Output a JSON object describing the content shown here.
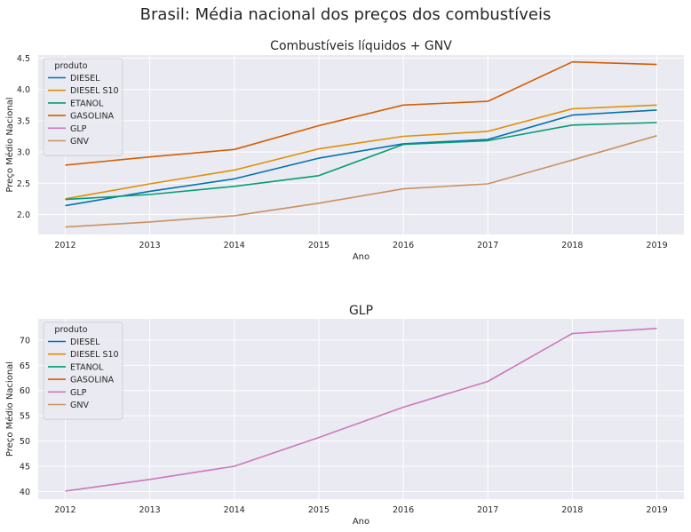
{
  "figure": {
    "suptitle": "Brasil: Média nacional dos preços dos combustíveis"
  },
  "chart_data": [
    {
      "type": "line",
      "title": "Combustíveis líquidos + GNV",
      "xlabel": "Ano",
      "ylabel": "Preço Médio Nacional",
      "x": [
        2012,
        2013,
        2014,
        2015,
        2016,
        2017,
        2018,
        2019
      ],
      "xlim": [
        2011.68,
        2019.32
      ],
      "ylim": [
        1.68,
        4.55
      ],
      "yticks": [
        2.0,
        2.5,
        3.0,
        3.5,
        4.0,
        4.5
      ],
      "yticklabels": [
        "2.0",
        "2.5",
        "3.0",
        "3.5",
        "4.0",
        "4.5"
      ],
      "xticklabels": [
        "2012",
        "2013",
        "2014",
        "2015",
        "2016",
        "2017",
        "2018",
        "2019"
      ],
      "grid": true,
      "legend_position": "upper-left",
      "legend_title": "produto",
      "series": [
        {
          "name": "DIESEL",
          "color": "#0173b2",
          "values": [
            2.14,
            2.37,
            2.57,
            2.9,
            3.13,
            3.2,
            3.59,
            3.67
          ]
        },
        {
          "name": "DIESEL S10",
          "color": "#de8f05",
          "values": [
            2.25,
            2.49,
            2.71,
            3.05,
            3.25,
            3.33,
            3.69,
            3.75
          ]
        },
        {
          "name": "ETANOL",
          "color": "#029e73",
          "values": [
            2.24,
            2.32,
            2.45,
            2.62,
            3.12,
            3.18,
            3.43,
            3.47
          ]
        },
        {
          "name": "GASOLINA",
          "color": "#d55e00",
          "values": [
            2.79,
            2.92,
            3.04,
            3.42,
            3.75,
            3.81,
            4.44,
            4.4
          ]
        },
        {
          "name": "GLP",
          "color": "#cc78bc",
          "values": [
            null,
            null,
            null,
            null,
            null,
            null,
            null,
            null
          ]
        },
        {
          "name": "GNV",
          "color": "#ca9161",
          "values": [
            1.8,
            1.88,
            1.98,
            2.18,
            2.41,
            2.49,
            2.87,
            3.26
          ]
        }
      ]
    },
    {
      "type": "line",
      "title": "GLP",
      "xlabel": "Ano",
      "ylabel": "Preço Médio Nacional",
      "x": [
        2012,
        2013,
        2014,
        2015,
        2016,
        2017,
        2018,
        2019
      ],
      "xlim": [
        2011.68,
        2019.32
      ],
      "ylim": [
        38.5,
        74.2
      ],
      "yticks": [
        40,
        45,
        50,
        55,
        60,
        65,
        70
      ],
      "yticklabels": [
        "40",
        "45",
        "50",
        "55",
        "60",
        "65",
        "70"
      ],
      "xticklabels": [
        "2012",
        "2013",
        "2014",
        "2015",
        "2016",
        "2017",
        "2018",
        "2019"
      ],
      "grid": true,
      "legend_position": "upper-left",
      "legend_title": "produto",
      "series": [
        {
          "name": "DIESEL",
          "color": "#0173b2",
          "values": [
            null,
            null,
            null,
            null,
            null,
            null,
            null,
            null
          ]
        },
        {
          "name": "DIESEL S10",
          "color": "#de8f05",
          "values": [
            null,
            null,
            null,
            null,
            null,
            null,
            null,
            null
          ]
        },
        {
          "name": "ETANOL",
          "color": "#029e73",
          "values": [
            null,
            null,
            null,
            null,
            null,
            null,
            null,
            null
          ]
        },
        {
          "name": "GASOLINA",
          "color": "#d55e00",
          "values": [
            null,
            null,
            null,
            null,
            null,
            null,
            null,
            null
          ]
        },
        {
          "name": "GLP",
          "color": "#cc78bc",
          "values": [
            40.1,
            42.4,
            45.0,
            50.7,
            56.7,
            61.8,
            71.3,
            72.3
          ]
        },
        {
          "name": "GNV",
          "color": "#ca9161",
          "values": [
            null,
            null,
            null,
            null,
            null,
            null,
            null,
            null
          ]
        }
      ]
    }
  ]
}
